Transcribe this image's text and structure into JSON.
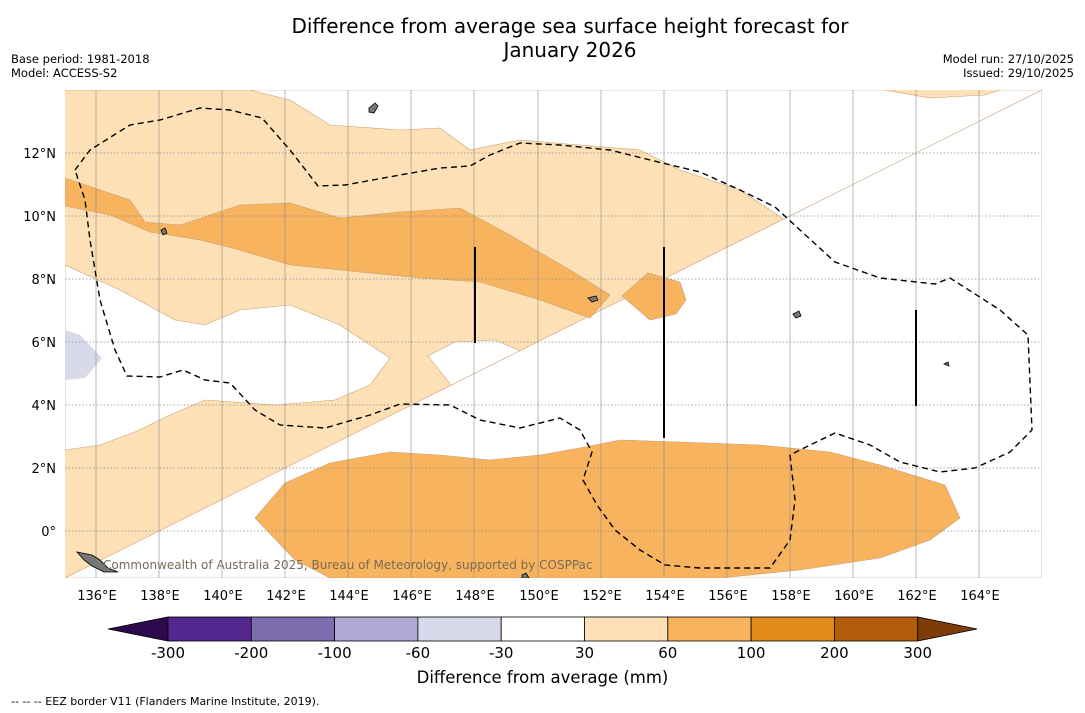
{
  "header": {
    "title_line1": "Difference from average sea surface height forecast for",
    "title_line2": "January 2026",
    "base_period": "Base period: 1981-2018",
    "model": "Model: ACCESS-S2",
    "model_run": "Model run: 27/10/2025",
    "issued": "Issued: 29/10/2025"
  },
  "map": {
    "lat_labels": [
      "12°N",
      "10°N",
      "8°N",
      "6°N",
      "4°N",
      "2°N",
      "0°"
    ],
    "lon_labels": [
      "136°E",
      "138°E",
      "140°E",
      "142°E",
      "144°E",
      "146°E",
      "148°E",
      "150°E",
      "152°E",
      "154°E",
      "156°E",
      "158°E",
      "160°E",
      "162°E",
      "164°E"
    ],
    "attribution": "Commonwealth of Australia 2025, Bureau of Meteorology, supported by COSPPac"
  },
  "colorbar": {
    "title": "Difference from average (mm)",
    "ticks": [
      "-300",
      "-200",
      "-100",
      "-60",
      "-30",
      "30",
      "60",
      "100",
      "200",
      "300"
    ],
    "colors": {
      "under": "#2d0a4e",
      "b1": "#54278f",
      "b2": "#7d6eb0",
      "b3": "#aeaad4",
      "b4": "#d8d9ea",
      "b5": "#ffffff",
      "b6": "#fde0b6",
      "b7": "#f8b35e",
      "b8": "#e08a1a",
      "b9": "#b35c0c",
      "over": "#7f3b08"
    }
  },
  "footer": {
    "eez_note": "--  --  -- EEZ border V11 (Flanders Marine Institute, 2019)."
  }
}
